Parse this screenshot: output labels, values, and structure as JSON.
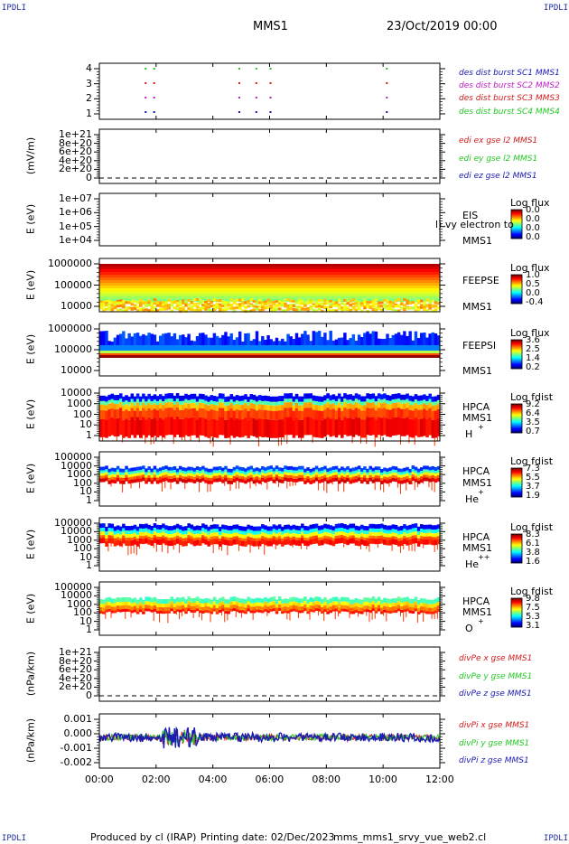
{
  "header": {
    "corner_label": "IPDLI",
    "title": "MMS1",
    "date": "23/Oct/2019 00:00"
  },
  "footer": {
    "produced": "Produced by cl (IRAP)",
    "printing": "Printing date: 02/Dec/2023",
    "file": "mms_mms1_srvy_vue_web2.cl"
  },
  "colors": {
    "blue": "#1a1ab4",
    "magenta": "#c01cc0",
    "red": "#d21c1c",
    "green": "#22c822"
  },
  "chart_data": [
    {
      "id": "burst",
      "type": "scatter",
      "yticks": [
        "4",
        "3",
        "2",
        "1"
      ],
      "legend": [
        {
          "text": "des dist burst SC1 MMS1",
          "color": "#1a1ab4"
        },
        {
          "text": "des dist burst SC2 MMS2",
          "color": "#c01cc0"
        },
        {
          "text": "des dist burst SC3 MMS3",
          "color": "#d21c1c"
        },
        {
          "text": "des dist burst SC4 MMS4",
          "color": "#22c822"
        }
      ],
      "points_hours": [
        1.6,
        1.9,
        4.9,
        5.5,
        6.0,
        10.1
      ]
    },
    {
      "id": "edi",
      "type": "line",
      "ylabel": "(mV/m)",
      "yticks": [
        "1e+21",
        "8e+20",
        "6e+20",
        "4e+20",
        "2e+20",
        "0"
      ],
      "legend": [
        {
          "text": "edi ex gse l2 MMS1",
          "color": "#d21c1c"
        },
        {
          "text": "edi ey gse l2 MMS1",
          "color": "#22c822"
        },
        {
          "text": "edi ez gse l2 MMS1",
          "color": "#1a1ab4"
        }
      ]
    },
    {
      "id": "eis",
      "type": "heatmap",
      "ylabel": "E (eV)",
      "yticks": [
        "1e+07",
        "1e+06",
        "1e+05",
        "1e+04"
      ],
      "instrument": "EIS",
      "spacecraft": "MMS1",
      "overlay": "l) vy electron to",
      "cbar_title": "Log flux",
      "cbar_values": [
        "0.0",
        "0.0",
        "0.0",
        "0.0"
      ]
    },
    {
      "id": "feepse",
      "type": "heatmap",
      "ylabel": "E (eV)",
      "yticks": [
        "1000000",
        "100000",
        "10000"
      ],
      "instrument": "FEEPSE",
      "spacecraft": "MMS1",
      "cbar_title": "Log flux",
      "cbar_values": [
        "1.0",
        "0.5",
        "0.0",
        "-0.4"
      ]
    },
    {
      "id": "feepsi",
      "type": "heatmap",
      "ylabel": "E (eV)",
      "yticks": [
        "1000000",
        "100000",
        "10000"
      ],
      "instrument": "FEEPSI",
      "spacecraft": "MMS1",
      "cbar_title": "Log flux",
      "cbar_values": [
        "3.6",
        "2.5",
        "1.4",
        "0.2"
      ]
    },
    {
      "id": "hpca_h",
      "type": "heatmap",
      "ylabel": "E (eV)",
      "yticks": [
        "10000",
        "1000",
        "100",
        "10",
        "1"
      ],
      "instrument": "HPCA",
      "spacecraft": "MMS1",
      "species": "H",
      "charge": "+",
      "cbar_title": "Log fdist",
      "cbar_values": [
        "9.2",
        "6.4",
        "3.5",
        "0.7"
      ]
    },
    {
      "id": "hpca_he",
      "type": "heatmap",
      "ylabel": "E (eV)",
      "yticks": [
        "100000",
        "10000",
        "1000",
        "100",
        "10",
        "1"
      ],
      "instrument": "HPCA",
      "spacecraft": "MMS1",
      "species": "He",
      "charge": "+",
      "cbar_title": "Log fdist",
      "cbar_values": [
        "7.3",
        "5.5",
        "3.7",
        "1.9"
      ]
    },
    {
      "id": "hpca_hepp",
      "type": "heatmap",
      "ylabel": "E (eV)",
      "yticks": [
        "100000",
        "10000",
        "1000",
        "100",
        "10",
        "1"
      ],
      "instrument": "HPCA",
      "spacecraft": "MMS1",
      "species": "He",
      "charge": "++",
      "cbar_title": "Log fdist",
      "cbar_values": [
        "8.3",
        "6.1",
        "3.8",
        "1.6"
      ]
    },
    {
      "id": "hpca_o",
      "type": "heatmap",
      "ylabel": "E (eV)",
      "yticks": [
        "100000",
        "10000",
        "1000",
        "100",
        "10",
        "1"
      ],
      "instrument": "HPCA",
      "spacecraft": "MMS1",
      "species": "O",
      "charge": "+",
      "cbar_title": "Log fdist",
      "cbar_values": [
        "9.8",
        "7.5",
        "5.3",
        "3.1"
      ]
    },
    {
      "id": "divpe",
      "type": "line",
      "ylabel": "(nPa/km)",
      "yticks": [
        "1e+21",
        "8e+20",
        "6e+20",
        "4e+20",
        "2e+20",
        "0"
      ],
      "legend": [
        {
          "text": "divPe x gse MMS1",
          "color": "#d21c1c"
        },
        {
          "text": "divPe y gse MMS1",
          "color": "#22c822"
        },
        {
          "text": "divPe z gse MMS1",
          "color": "#1a1ab4"
        }
      ]
    },
    {
      "id": "divpi",
      "type": "line",
      "ylabel": "(nPa/km)",
      "yticks": [
        "0.001",
        "0.000",
        "-0.001",
        "-0.002"
      ],
      "ylim": [
        -0.002,
        0.0015
      ],
      "legend": [
        {
          "text": "divPi x gse MMS1",
          "color": "#d21c1c"
        },
        {
          "text": "divPi y gse MMS1",
          "color": "#22c822"
        },
        {
          "text": "divPi z gse MMS1",
          "color": "#1a1ab4"
        }
      ]
    }
  ],
  "xaxis": {
    "ticks": [
      "00:00",
      "02:00",
      "04:00",
      "06:00",
      "08:00",
      "10:00",
      "12:00"
    ]
  }
}
